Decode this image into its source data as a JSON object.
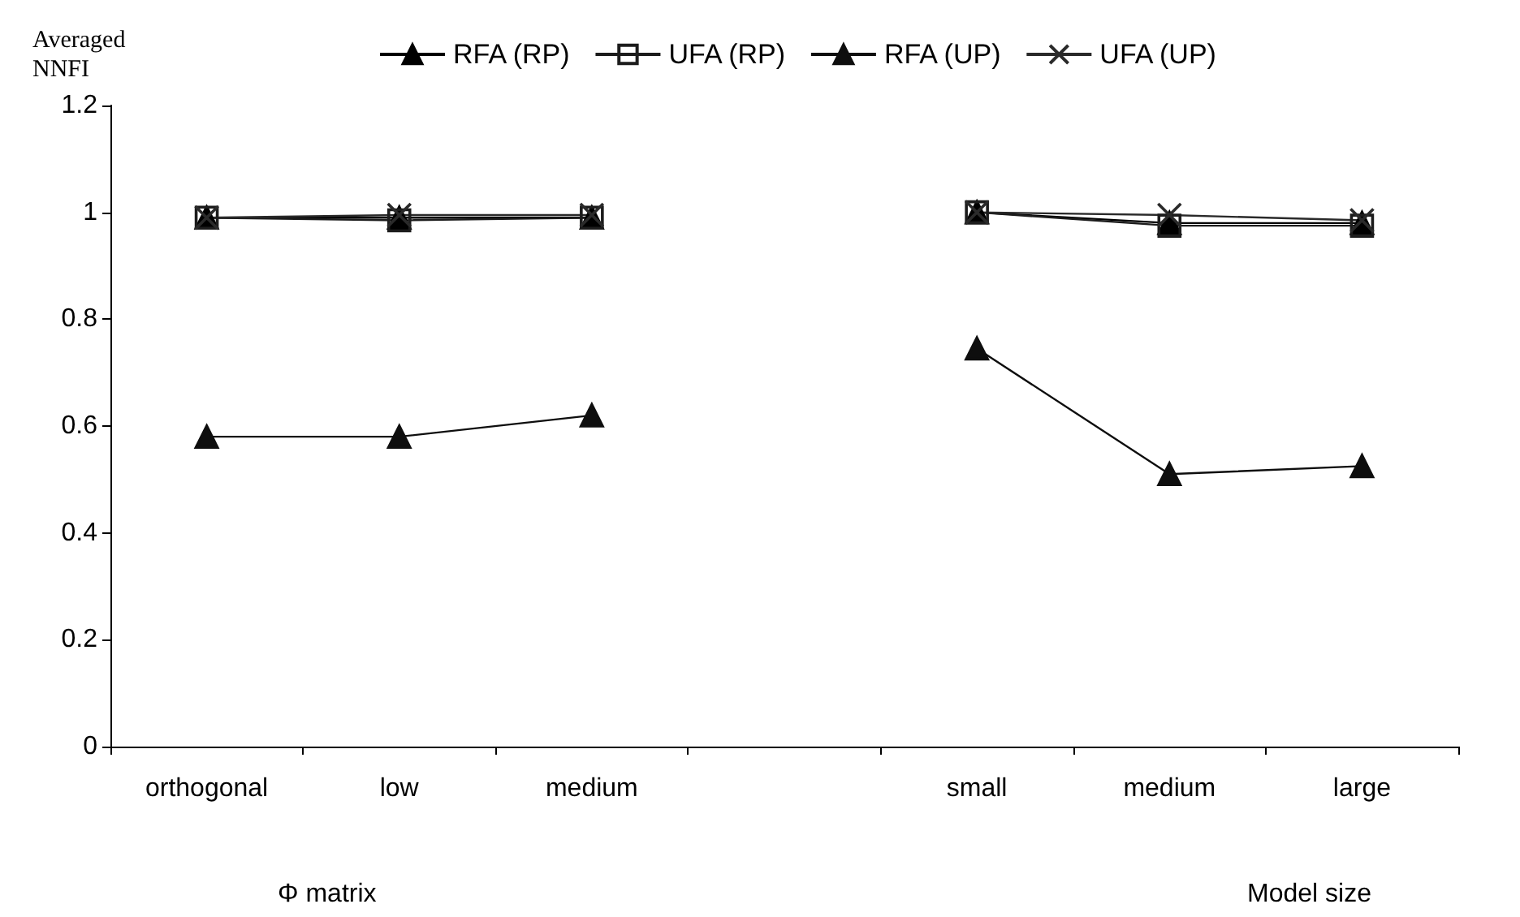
{
  "chart_data": {
    "type": "line",
    "ylabel": "Averaged NNFI",
    "categories": [
      "orthogonal",
      "low",
      "medium",
      null,
      "small",
      "medium",
      "large"
    ],
    "series": [
      {
        "name": "RFA (RP)",
        "color": "#000000",
        "marker": "triangle",
        "values": [
          0.99,
          0.99,
          0.99,
          null,
          1.0,
          0.98,
          0.98
        ]
      },
      {
        "name": "UFA (RP)",
        "color": "#1c1c1c",
        "marker": "square",
        "values": [
          0.99,
          0.985,
          0.99,
          null,
          1.0,
          0.975,
          0.975
        ]
      },
      {
        "name": "RFA (UP)",
        "color": "#0e0e0e",
        "marker": "triangle",
        "values": [
          0.58,
          0.58,
          0.62,
          null,
          0.745,
          0.51,
          0.525
        ]
      },
      {
        "name": "UFA (UP)",
        "color": "#2a2a2a",
        "marker": "cross",
        "values": [
          0.99,
          0.995,
          0.995,
          null,
          1.0,
          0.995,
          0.985
        ]
      }
    ],
    "ylim": [
      0,
      1.2
    ],
    "yticks": [
      0,
      0.2,
      0.4,
      0.6,
      0.8,
      1,
      1.2
    ],
    "grid": false,
    "legend": "top",
    "line_style": "solid",
    "annotations": [
      "Φ matrix",
      "Model size"
    ]
  }
}
